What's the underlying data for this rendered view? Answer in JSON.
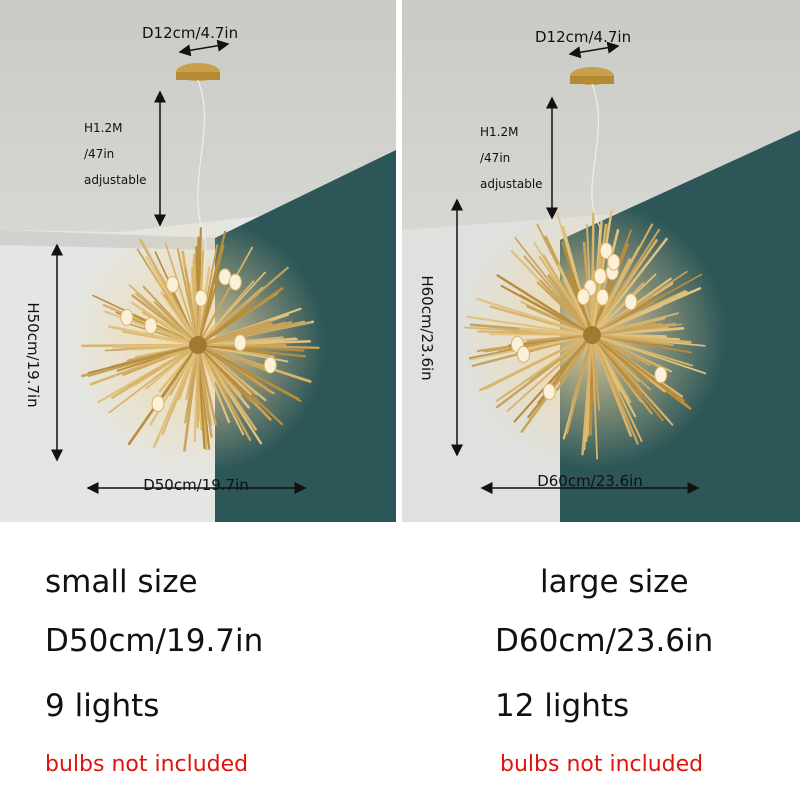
{
  "panels": [
    {
      "canopy_label": "D12cm/4.7in",
      "cord_label": [
        "H1.2M",
        "/47in",
        "adjustable"
      ],
      "height_label": "H50cm/19.7in",
      "diameter_label": "D50cm/19.7in"
    },
    {
      "canopy_label": "D12cm/4.7in",
      "cord_label": [
        "H1.2M",
        "/47in",
        "adjustable"
      ],
      "height_label": "H60cm/23.6in",
      "diameter_label": "D60cm/23.6in"
    }
  ],
  "captions": [
    {
      "size": "small size",
      "diameter": "D50cm/19.7in",
      "lights": "9 lights",
      "note": "bulbs not included"
    },
    {
      "size": "large size",
      "diameter": "D60cm/23.6in",
      "lights": "12 lights",
      "note": "bulbs not included"
    }
  ]
}
